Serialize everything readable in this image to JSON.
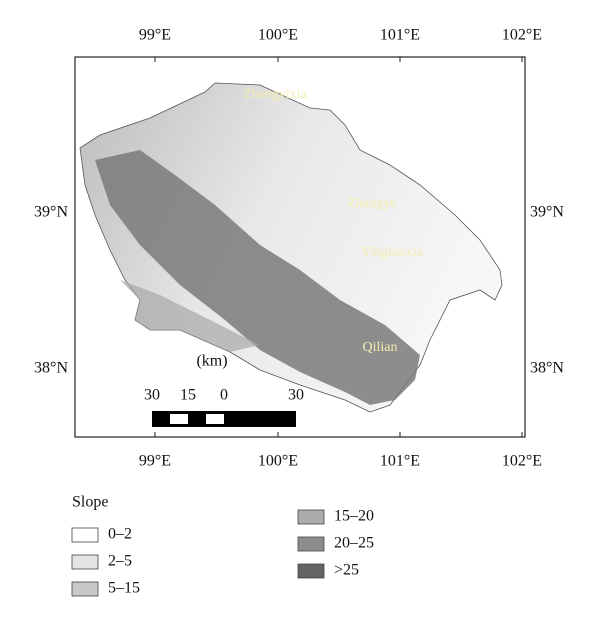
{
  "map": {
    "longitude_labels": [
      "99°E",
      "100°E",
      "101°E",
      "102°E"
    ],
    "latitude_labels": [
      "39°N",
      "38°N"
    ],
    "places": [
      "Zhengyixia",
      "Zhangye",
      "Yingluoxia",
      "Qilian"
    ],
    "scale_bar": {
      "unit": "(km)",
      "labels": [
        "30",
        "15",
        "0",
        "30"
      ]
    },
    "legend": {
      "title": "Slope",
      "items": [
        {
          "label": "0–2",
          "color": "#ffffff"
        },
        {
          "label": "2–5",
          "color": "#e4e4e4"
        },
        {
          "label": "5–15",
          "color": "#c8c8c8"
        },
        {
          "label": "15–20",
          "color": "#ababab"
        },
        {
          "label": "20–25",
          "color": "#8c8c8c"
        },
        {
          "label": ">25",
          "color": "#636363"
        }
      ]
    }
  }
}
